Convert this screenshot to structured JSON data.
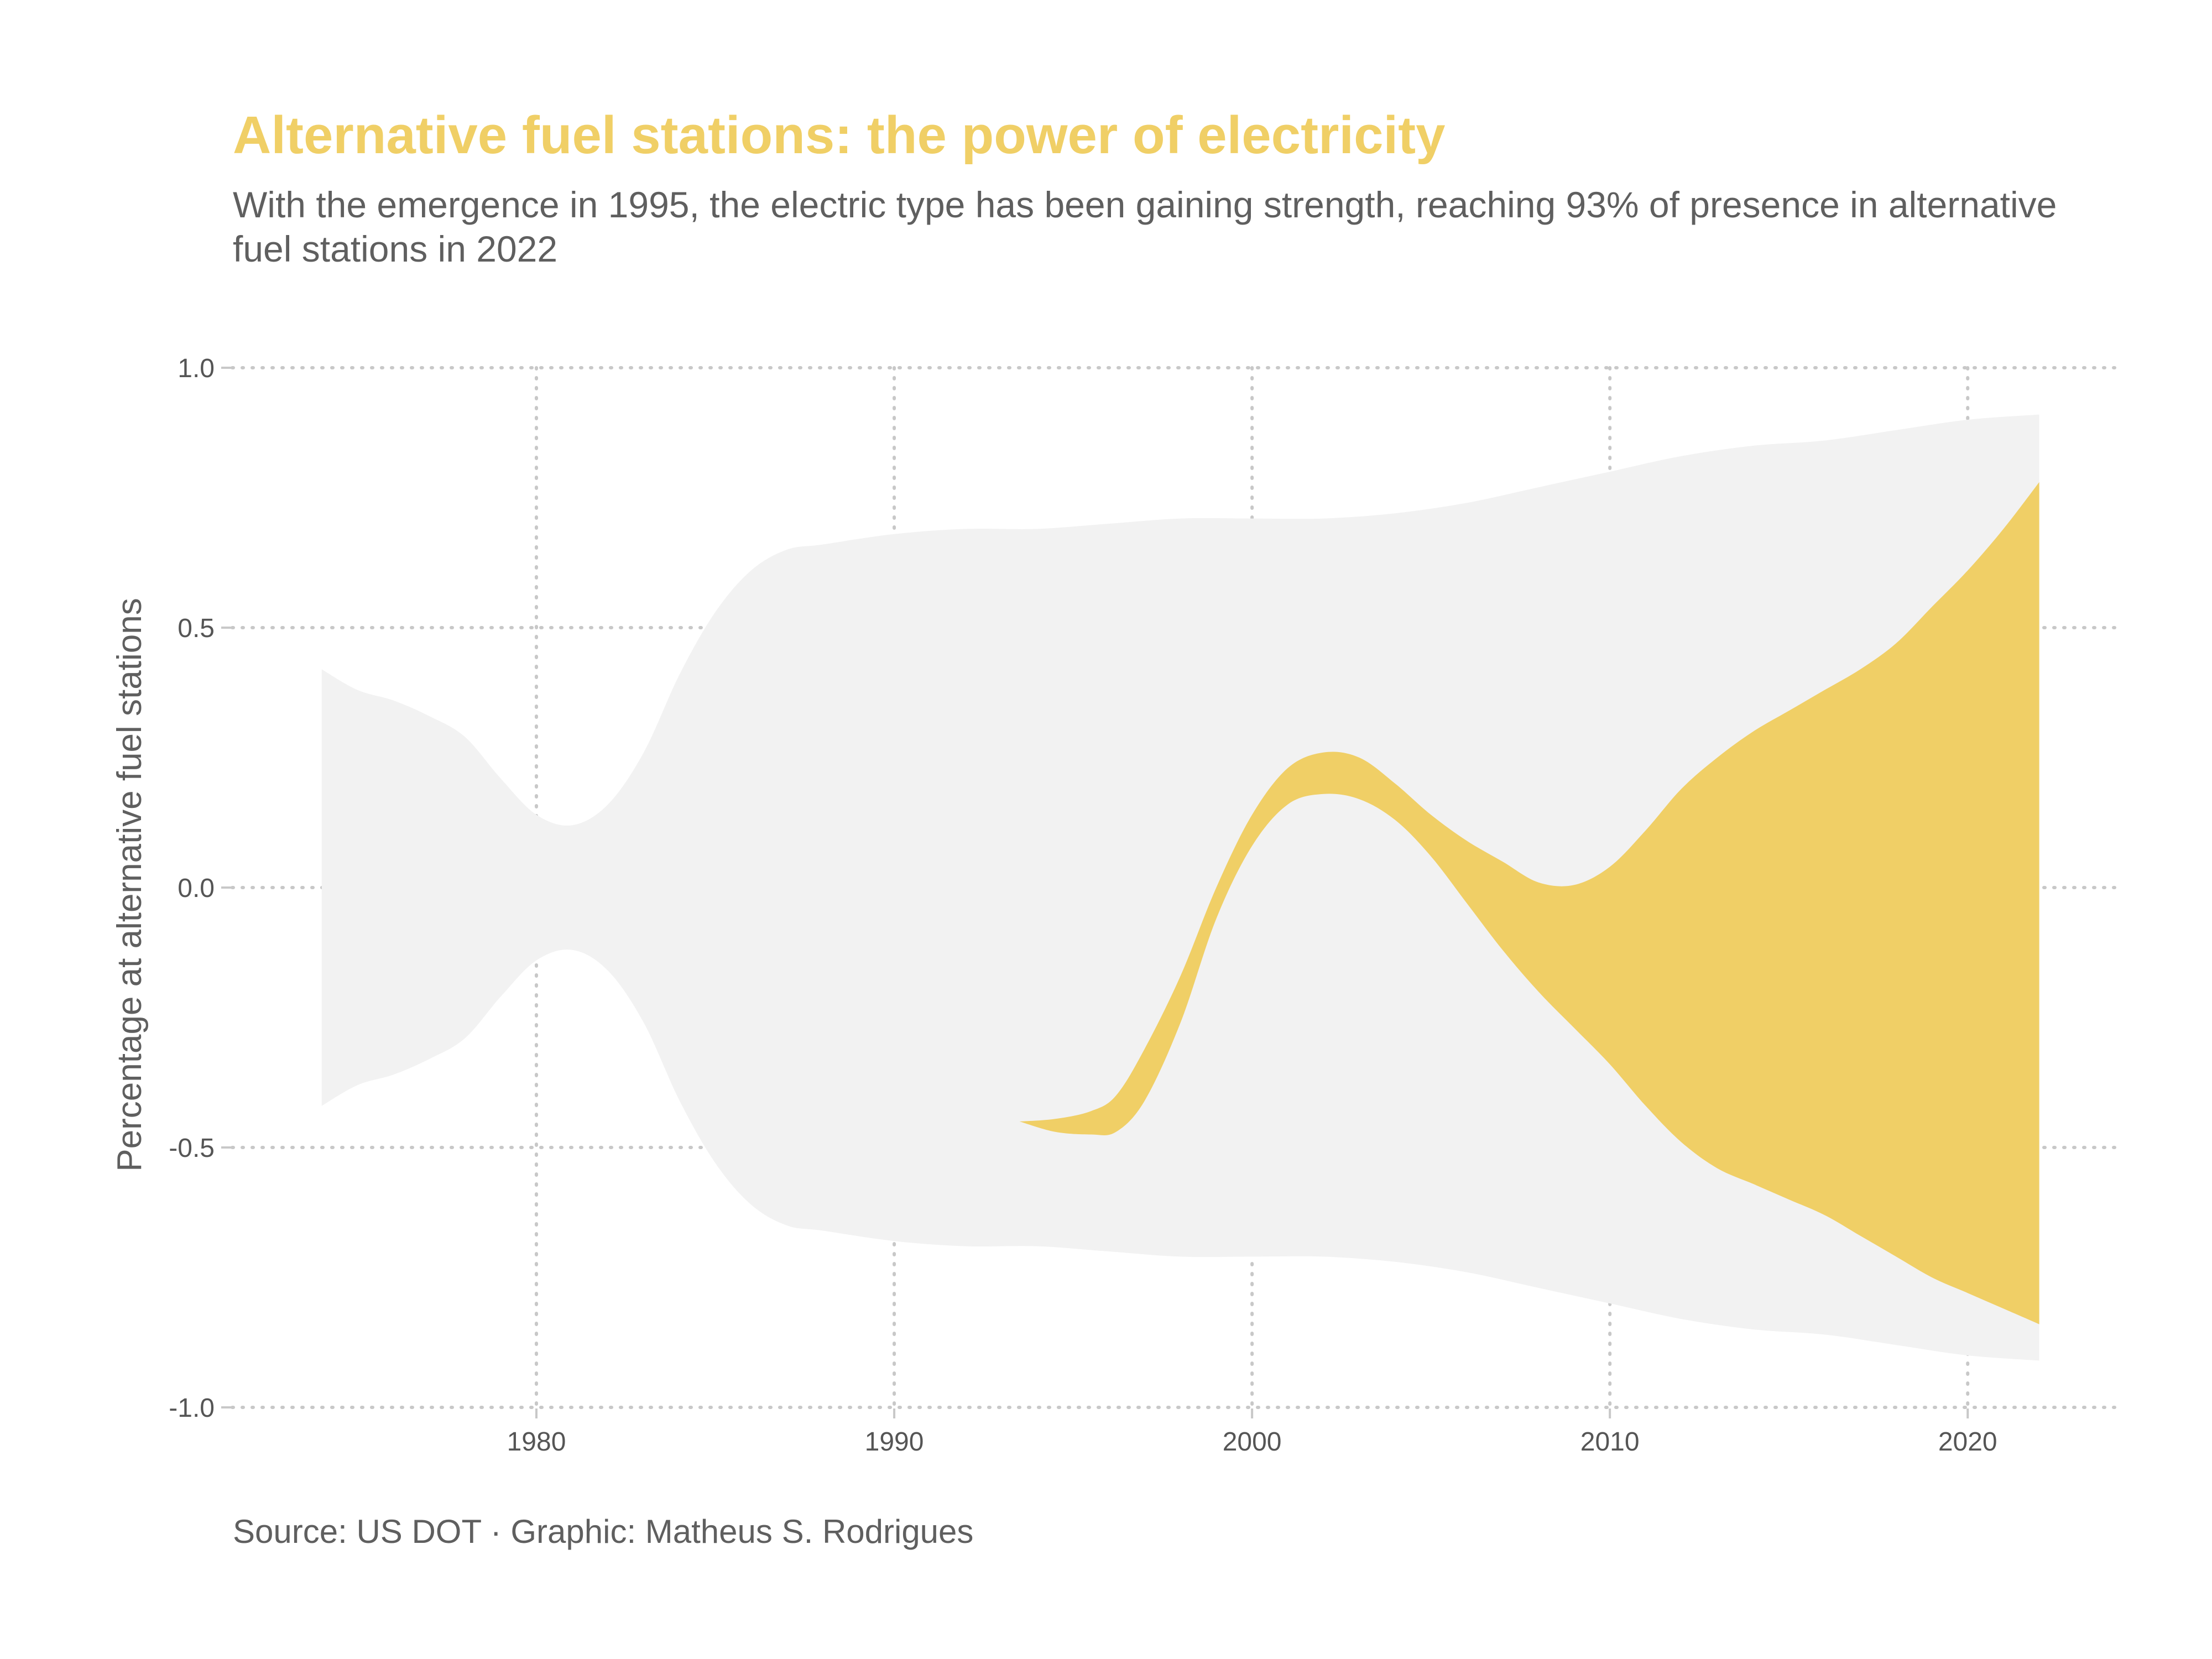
{
  "title": "Alternative fuel stations: the power of electricity",
  "subtitle": "With the emergence in 1995, the electric type has been gaining strength, reaching 93% of presence in alternative fuel stations in 2022",
  "caption": "Source: US DOT · Graphic: Matheus S. Rodrigues",
  "colors": {
    "electric": "#f0cf66",
    "other": "#f2f2f2",
    "grid": "#c8c8c8",
    "text": "#5f5f5f"
  },
  "chart_data": {
    "type": "area",
    "subtype": "streamgraph",
    "ylabel": "Percentage at alternative fuel stations",
    "xlabel": "",
    "xlim": [
      1971.5,
      2024.2
    ],
    "ylim": [
      -1.0,
      1.0
    ],
    "x_ticks": [
      "1980",
      "1990",
      "2000",
      "2010",
      "2020"
    ],
    "y_ticks": [
      "1.0",
      "0.5",
      "0.0",
      "-0.5",
      "-1.0"
    ],
    "grid": true,
    "series": [
      {
        "name": "",
        "color": "#f2f2f2",
        "x": [
          1974,
          1975,
          1976,
          1977,
          1978,
          1979,
          1980,
          1981,
          1982,
          1983,
          1984,
          1985,
          1986,
          1987,
          1988,
          1990,
          1992,
          1994,
          1996,
          1998,
          2000,
          2002,
          2004,
          2006,
          2008,
          2010,
          2012,
          2014,
          2016,
          2018,
          2020,
          2022
        ],
        "upper": [
          0.42,
          0.38,
          0.36,
          0.33,
          0.29,
          0.21,
          0.14,
          0.12,
          0.16,
          0.26,
          0.41,
          0.53,
          0.61,
          0.65,
          0.66,
          0.68,
          0.69,
          0.69,
          0.7,
          0.71,
          0.71,
          0.71,
          0.72,
          0.74,
          0.77,
          0.8,
          0.83,
          0.85,
          0.86,
          0.88,
          0.9,
          0.91
        ],
        "lower": [
          -0.42,
          -0.38,
          -0.36,
          -0.33,
          -0.29,
          -0.21,
          -0.14,
          -0.12,
          -0.16,
          -0.26,
          -0.41,
          -0.53,
          -0.61,
          -0.65,
          -0.66,
          -0.68,
          -0.69,
          -0.69,
          -0.7,
          -0.71,
          -0.71,
          -0.71,
          -0.72,
          -0.74,
          -0.77,
          -0.8,
          -0.83,
          -0.85,
          -0.86,
          -0.88,
          -0.9,
          -0.91
        ]
      },
      {
        "name": "",
        "color": "#f0cf66",
        "x": [
          1993.5,
          1994.5,
          1995.5,
          1996.2,
          1997,
          1998,
          1999,
          2000,
          2001,
          2002,
          2003,
          2004,
          2005,
          2006,
          2007,
          2008,
          2009,
          2010,
          2011,
          2012,
          2013,
          2014,
          2015,
          2016,
          2017,
          2018,
          2019,
          2020,
          2021,
          2022
        ],
        "upper": [
          -0.45,
          -0.445,
          -0.43,
          -0.4,
          -0.31,
          -0.17,
          0.0,
          0.14,
          0.23,
          0.26,
          0.25,
          0.2,
          0.14,
          0.09,
          0.05,
          0.01,
          0.005,
          0.04,
          0.11,
          0.19,
          0.25,
          0.3,
          0.34,
          0.38,
          0.42,
          0.47,
          0.54,
          0.61,
          0.69,
          0.78
        ],
        "lower": [
          -0.45,
          -0.47,
          -0.475,
          -0.47,
          -0.41,
          -0.26,
          -0.06,
          0.08,
          0.16,
          0.18,
          0.17,
          0.13,
          0.06,
          -0.03,
          -0.12,
          -0.2,
          -0.27,
          -0.34,
          -0.42,
          -0.49,
          -0.54,
          -0.57,
          -0.6,
          -0.63,
          -0.67,
          -0.71,
          -0.75,
          -0.78,
          -0.81,
          -0.84
        ]
      }
    ]
  }
}
